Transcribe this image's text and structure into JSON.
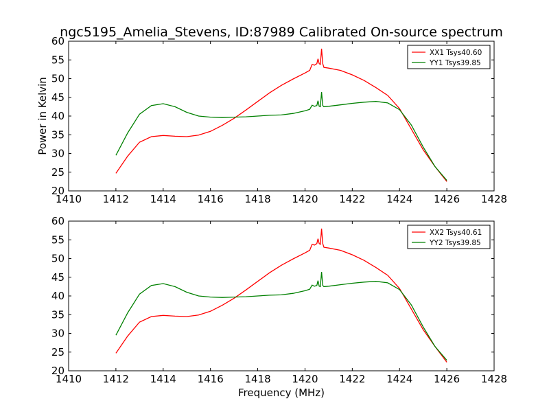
{
  "chart_data": [
    {
      "type": "line",
      "title": "ngc5195_Amelia_Stevens, ID:87989 Calibrated On-source spectrum",
      "xlabel": "",
      "ylabel": "Power in Kelvin",
      "xlim": [
        1410,
        1428
      ],
      "ylim": [
        20,
        60
      ],
      "xticks": [
        "1410",
        "1412",
        "1414",
        "1416",
        "1418",
        "1420",
        "1422",
        "1424",
        "1426",
        "1428"
      ],
      "yticks": [
        "20",
        "25",
        "30",
        "35",
        "40",
        "45",
        "50",
        "55",
        "60"
      ],
      "legend_position": "top-right",
      "series": [
        {
          "name": "XX1 Tsys40.60",
          "color": "#ff0000",
          "x": [
            1412,
            1412.5,
            1413,
            1413.5,
            1414,
            1414.5,
            1415,
            1415.5,
            1416,
            1416.5,
            1417,
            1417.5,
            1418,
            1418.5,
            1419,
            1419.5,
            1420,
            1420.2,
            1420.3,
            1420.4,
            1420.5,
            1420.55,
            1420.6,
            1420.65,
            1420.7,
            1420.75,
            1420.8,
            1421,
            1421.5,
            1422,
            1422.5,
            1423,
            1423.5,
            1424,
            1424.5,
            1425,
            1425.5,
            1426
          ],
          "y": [
            24.7,
            29.3,
            33.0,
            34.5,
            34.8,
            34.6,
            34.5,
            34.9,
            35.9,
            37.5,
            39.4,
            41.6,
            43.9,
            46.2,
            48.2,
            49.9,
            51.5,
            52.2,
            53.8,
            53.6,
            54.0,
            55.3,
            54.0,
            53.8,
            58.0,
            54.0,
            53.0,
            52.8,
            52.2,
            51.0,
            49.5,
            47.6,
            45.5,
            42.0,
            36.5,
            31.0,
            26.5,
            22.5
          ]
        },
        {
          "name": "YY1 Tsys39.85",
          "color": "#008000",
          "x": [
            1412,
            1412.5,
            1413,
            1413.5,
            1414,
            1414.5,
            1415,
            1415.5,
            1416,
            1416.5,
            1417,
            1417.5,
            1418,
            1418.5,
            1419,
            1419.5,
            1420,
            1420.2,
            1420.3,
            1420.4,
            1420.5,
            1420.55,
            1420.6,
            1420.65,
            1420.7,
            1420.75,
            1420.8,
            1421,
            1421.5,
            1422,
            1422.5,
            1423,
            1423.5,
            1424,
            1424.5,
            1425,
            1425.5,
            1426
          ],
          "y": [
            29.5,
            35.5,
            40.5,
            42.8,
            43.3,
            42.5,
            41.0,
            40.0,
            39.7,
            39.6,
            39.7,
            39.8,
            40.0,
            40.2,
            40.3,
            40.7,
            41.4,
            41.8,
            42.9,
            42.6,
            42.8,
            44.1,
            42.6,
            42.5,
            46.4,
            42.8,
            42.5,
            42.6,
            43.0,
            43.4,
            43.7,
            43.9,
            43.5,
            41.7,
            37.6,
            31.7,
            26.5,
            22.8
          ]
        }
      ]
    },
    {
      "type": "line",
      "title": "",
      "xlabel": "Frequency (MHz)",
      "ylabel": "",
      "xlim": [
        1410,
        1428
      ],
      "ylim": [
        20,
        60
      ],
      "xticks": [
        "1410",
        "1412",
        "1414",
        "1416",
        "1418",
        "1420",
        "1422",
        "1424",
        "1426",
        "1428"
      ],
      "yticks": [
        "20",
        "25",
        "30",
        "35",
        "40",
        "45",
        "50",
        "55",
        "60"
      ],
      "legend_position": "top-right",
      "series": [
        {
          "name": "XX2 Tsys40.61",
          "color": "#ff0000",
          "x": [
            1412,
            1412.5,
            1413,
            1413.5,
            1414,
            1414.5,
            1415,
            1415.5,
            1416,
            1416.5,
            1417,
            1417.5,
            1418,
            1418.5,
            1419,
            1419.5,
            1420,
            1420.2,
            1420.3,
            1420.4,
            1420.5,
            1420.55,
            1420.6,
            1420.65,
            1420.7,
            1420.75,
            1420.8,
            1421,
            1421.5,
            1422,
            1422.5,
            1423,
            1423.5,
            1424,
            1424.5,
            1425,
            1425.5,
            1426
          ],
          "y": [
            24.7,
            29.3,
            33.0,
            34.5,
            34.8,
            34.6,
            34.5,
            34.9,
            35.9,
            37.5,
            39.4,
            41.6,
            43.9,
            46.2,
            48.2,
            49.9,
            51.5,
            52.2,
            53.8,
            53.6,
            54.0,
            55.3,
            54.0,
            53.8,
            58.0,
            54.0,
            53.0,
            52.8,
            52.2,
            51.0,
            49.5,
            47.6,
            45.5,
            42.0,
            36.5,
            31.0,
            26.5,
            22.3
          ]
        },
        {
          "name": "YY2 Tsys39.85",
          "color": "#008000",
          "x": [
            1412,
            1412.5,
            1413,
            1413.5,
            1414,
            1414.5,
            1415,
            1415.5,
            1416,
            1416.5,
            1417,
            1417.5,
            1418,
            1418.5,
            1419,
            1419.5,
            1420,
            1420.2,
            1420.3,
            1420.4,
            1420.5,
            1420.55,
            1420.6,
            1420.65,
            1420.7,
            1420.75,
            1420.8,
            1421,
            1421.5,
            1422,
            1422.5,
            1423,
            1423.5,
            1424,
            1424.5,
            1425,
            1425.5,
            1426
          ],
          "y": [
            29.5,
            35.5,
            40.5,
            42.8,
            43.3,
            42.5,
            41.0,
            40.0,
            39.7,
            39.6,
            39.7,
            39.8,
            40.0,
            40.2,
            40.3,
            40.7,
            41.4,
            41.8,
            42.9,
            42.6,
            42.8,
            44.1,
            42.6,
            42.5,
            46.4,
            42.8,
            42.5,
            42.6,
            43.0,
            43.4,
            43.7,
            43.9,
            43.5,
            41.7,
            37.6,
            31.7,
            26.5,
            22.8
          ]
        }
      ]
    }
  ]
}
